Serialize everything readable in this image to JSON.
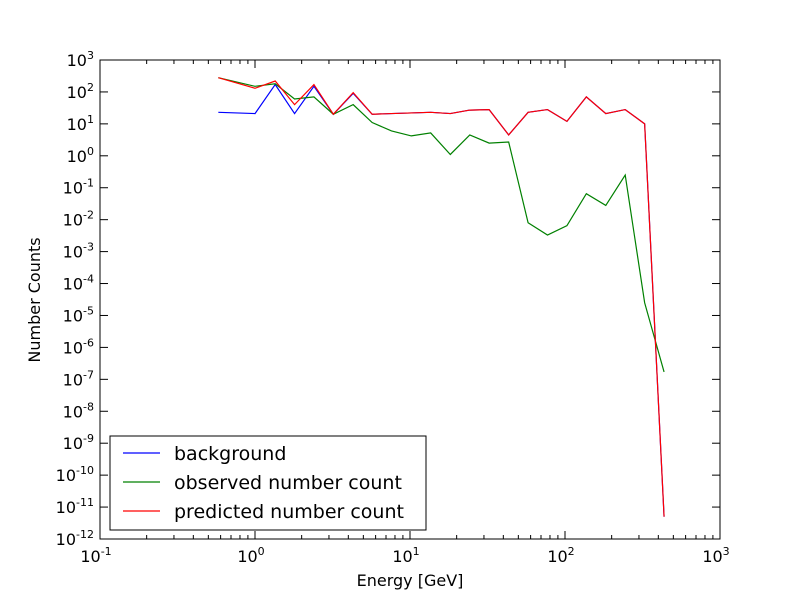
{
  "chart_data": {
    "type": "line",
    "xlabel": "Energy [GeV]",
    "ylabel": "Number Counts",
    "xscale": "log",
    "yscale": "log",
    "xlim": [
      0.1,
      1000
    ],
    "ylim": [
      1e-12,
      1000
    ],
    "x_tick_exponents": [
      -1,
      0,
      1,
      2,
      3
    ],
    "y_tick_exponents": [
      -12,
      -11,
      -10,
      -9,
      -8,
      -7,
      -6,
      -5,
      -4,
      -3,
      -2,
      -1,
      0,
      1,
      2,
      3
    ],
    "tick_base": "10",
    "grid": false,
    "legend_position": "lower-left",
    "x": [
      0.58,
      1.0,
      1.35,
      1.8,
      2.4,
      3.2,
      4.3,
      5.7,
      7.6,
      10.2,
      13.6,
      18.2,
      24.3,
      32.4,
      43.3,
      57.8,
      77.1,
      102.9,
      137.3,
      183.3,
      244.6,
      326.5,
      435.7
    ],
    "series": [
      {
        "name": "background",
        "color": "#0000ff",
        "values": [
          23,
          21,
          170,
          21,
          150,
          20,
          90,
          20,
          21,
          22,
          23,
          21,
          27,
          28,
          4.5,
          23,
          28,
          12,
          70,
          21,
          28,
          10,
          5e-12
        ]
      },
      {
        "name": "observed number count",
        "color": "#008000",
        "values": [
          280,
          150,
          180,
          60,
          70,
          20,
          40,
          11,
          6,
          4.2,
          5.2,
          1.1,
          4.5,
          2.5,
          2.7,
          0.008,
          0.0033,
          0.0065,
          0.065,
          0.028,
          0.25,
          2.5e-05,
          1.7e-07
        ]
      },
      {
        "name": "predicted number count",
        "color": "#ff0000",
        "values": [
          280,
          130,
          220,
          40,
          170,
          20,
          95,
          20,
          21,
          22,
          23,
          21,
          27,
          28,
          4.5,
          23,
          28,
          12,
          70,
          21,
          28,
          10,
          5e-12
        ]
      }
    ]
  }
}
